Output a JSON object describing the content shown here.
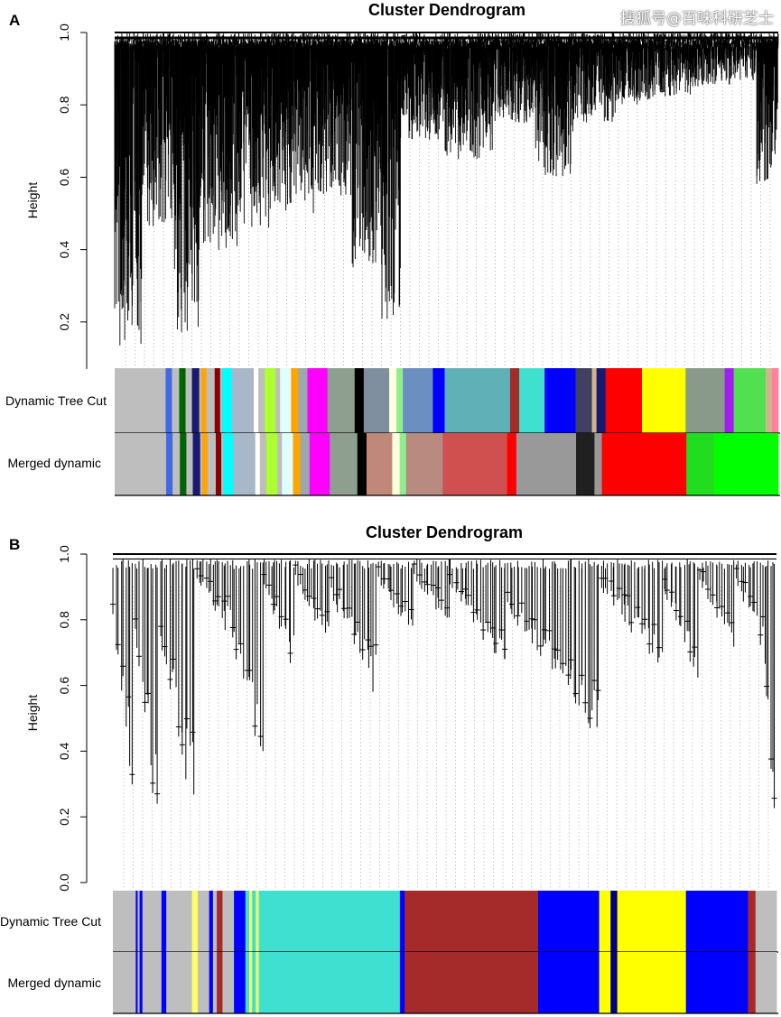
{
  "watermark": "搜狐号@百味科研芝士",
  "chart_data": [
    {
      "panel_label": "A",
      "type": "dendrogram",
      "title": "Cluster Dendrogram",
      "ylabel": "Height",
      "ylim": [
        0.1,
        1.0
      ],
      "yticks": [
        "0.2",
        "0.4",
        "0.6",
        "0.8",
        "1.0"
      ],
      "tick_values": [
        0.2,
        0.4,
        0.6,
        0.8,
        1.0
      ],
      "color_rows": [
        "Dynamic Tree Cut",
        "Merged dynamic"
      ],
      "branches": [
        {
          "weight": 10,
          "min_height": 0.13
        },
        {
          "weight": 12,
          "min_height": 0.45
        },
        {
          "weight": 10,
          "min_height": 0.16
        },
        {
          "weight": 14,
          "min_height": 0.38
        },
        {
          "weight": 12,
          "min_height": 0.46
        },
        {
          "weight": 16,
          "min_height": 0.5
        },
        {
          "weight": 14,
          "min_height": 0.55
        },
        {
          "weight": 10,
          "min_height": 0.35
        },
        {
          "weight": 8,
          "min_height": 0.2
        },
        {
          "weight": 16,
          "min_height": 0.7
        },
        {
          "weight": 18,
          "min_height": 0.65
        },
        {
          "weight": 16,
          "min_height": 0.75
        },
        {
          "weight": 14,
          "min_height": 0.6
        },
        {
          "weight": 16,
          "min_height": 0.75
        },
        {
          "weight": 14,
          "min_height": 0.8
        },
        {
          "weight": 14,
          "min_height": 0.82
        },
        {
          "weight": 14,
          "min_height": 0.85
        },
        {
          "weight": 10,
          "min_height": 0.86
        },
        {
          "weight": 8,
          "min_height": 0.58
        }
      ],
      "modules": {
        "dynamic_tree_cut": [
          [
            "#bebebe",
            56
          ],
          [
            "#4169e1",
            7
          ],
          [
            "#bebebe",
            8
          ],
          [
            "#006400",
            7
          ],
          [
            "#bebebe",
            7
          ],
          [
            "#191970",
            8
          ],
          [
            "#bebebe",
            2
          ],
          [
            "#ffa500",
            6
          ],
          [
            "#bebebe",
            9
          ],
          [
            "#8b0000",
            6
          ],
          [
            "#bebebe",
            2
          ],
          [
            "#00ffff",
            11
          ],
          [
            "#a9b8c8",
            24
          ],
          [
            "#ffffff",
            5
          ],
          [
            "#bebebe",
            7
          ],
          [
            "#adff2f",
            12
          ],
          [
            "#bebebe",
            5
          ],
          [
            "#e0ffff",
            12
          ],
          [
            "#ffa500",
            8
          ],
          [
            "#9aa8b0",
            10
          ],
          [
            "#ff00ff",
            22
          ],
          [
            "#8f9f8f",
            30
          ],
          [
            "#000000",
            10
          ],
          [
            "#7f8f9f",
            28
          ],
          [
            "#ffffe0",
            8
          ],
          [
            "#90ee90",
            7
          ],
          [
            "#6a8fc0",
            33
          ],
          [
            "#0000ff",
            13
          ],
          [
            "#60b0b8",
            72
          ],
          [
            "#a52a2a",
            10
          ],
          [
            "#40e0d0",
            28
          ],
          [
            "#0000ff",
            34
          ],
          [
            "#404060",
            18
          ],
          [
            "#d2b48c",
            5
          ],
          [
            "#191970",
            10
          ],
          [
            "#ff0000",
            40
          ],
          [
            "#ffff00",
            48
          ],
          [
            "#8a9a8a",
            43
          ],
          [
            "#a020f0",
            10
          ],
          [
            "#50e050",
            35
          ],
          [
            "#d2b48c",
            7
          ],
          [
            "#ff7f9f",
            7
          ]
        ],
        "merged_dynamic": [
          [
            "#bebebe",
            56
          ],
          [
            "#4169e1",
            7
          ],
          [
            "#bebebe",
            8
          ],
          [
            "#006400",
            7
          ],
          [
            "#bebebe",
            7
          ],
          [
            "#191970",
            8
          ],
          [
            "#bebebe",
            2
          ],
          [
            "#ffa500",
            6
          ],
          [
            "#bebebe",
            9
          ],
          [
            "#8b0000",
            6
          ],
          [
            "#bebebe",
            2
          ],
          [
            "#00ffff",
            11
          ],
          [
            "#a9b8c8",
            24
          ],
          [
            "#ffffff",
            5
          ],
          [
            "#bebebe",
            7
          ],
          [
            "#adff2f",
            12
          ],
          [
            "#bebebe",
            5
          ],
          [
            "#e0ffff",
            12
          ],
          [
            "#ffa500",
            8
          ],
          [
            "#9aa8b0",
            10
          ],
          [
            "#ff00ff",
            22
          ],
          [
            "#8f9f8f",
            30
          ],
          [
            "#000000",
            10
          ],
          [
            "#c08878",
            28
          ],
          [
            "#ffffe0",
            8
          ],
          [
            "#90ee90",
            7
          ],
          [
            "#b88a80",
            40
          ],
          [
            "#d05050",
            70
          ],
          [
            "#ff0000",
            10
          ],
          [
            "#999999",
            65
          ],
          [
            "#202020",
            20
          ],
          [
            "#999999",
            8
          ],
          [
            "#ff0000",
            92
          ],
          [
            "#20dd20",
            30
          ],
          [
            "#00ff00",
            70
          ]
        ]
      }
    },
    {
      "panel_label": "B",
      "type": "dendrogram",
      "title": "Cluster Dendrogram",
      "ylabel": "Height",
      "ylim": [
        0.0,
        1.0
      ],
      "yticks": [
        "0.0",
        "0.2",
        "0.4",
        "0.6",
        "0.8",
        "1.0"
      ],
      "tick_values": [
        0.0,
        0.2,
        0.4,
        0.6,
        0.8,
        1.0
      ],
      "color_rows": [
        "Dynamic Tree Cut",
        "Merged dynamic"
      ],
      "branches": [
        {
          "weight": 8,
          "min_height": 0.15
        },
        {
          "weight": 10,
          "min_height": 0.08
        },
        {
          "weight": 14,
          "min_height": 0.12
        },
        {
          "weight": 12,
          "min_height": 0.75
        },
        {
          "weight": 14,
          "min_height": 0.32
        },
        {
          "weight": 12,
          "min_height": 0.63
        },
        {
          "weight": 14,
          "min_height": 0.7
        },
        {
          "weight": 18,
          "min_height": 0.55
        },
        {
          "weight": 14,
          "min_height": 0.7
        },
        {
          "weight": 14,
          "min_height": 0.75
        },
        {
          "weight": 22,
          "min_height": 0.62
        },
        {
          "weight": 36,
          "min_height": 0.4
        },
        {
          "weight": 24,
          "min_height": 0.63
        },
        {
          "weight": 14,
          "min_height": 0.6
        },
        {
          "weight": 14,
          "min_height": 0.7
        },
        {
          "weight": 10,
          "min_height": 0.7
        },
        {
          "weight": 6,
          "min_height": 0.06
        }
      ],
      "modules": {
        "dynamic_tree_cut": [
          [
            "#bebebe",
            24
          ],
          [
            "#0000ff",
            2
          ],
          [
            "#bebebe",
            2
          ],
          [
            "#0000ff",
            3
          ],
          [
            "#bebebe",
            20
          ],
          [
            "#0000ff",
            5
          ],
          [
            "#bebebe",
            27
          ],
          [
            "#ffff66",
            6
          ],
          [
            "#bebebe",
            12
          ],
          [
            "#0000ff",
            4
          ],
          [
            "#bebebe",
            4
          ],
          [
            "#a52a2a",
            6
          ],
          [
            "#bebebe",
            12
          ],
          [
            "#0000ff",
            12
          ],
          [
            "#40e0d0",
            4
          ],
          [
            "#ffff66",
            3
          ],
          [
            "#40e0d0",
            4
          ],
          [
            "#ffff66",
            3
          ],
          [
            "#40e0d0",
            148
          ],
          [
            "#0000ff",
            5
          ],
          [
            "#a52a2a",
            140
          ],
          [
            "#0000ff",
            64
          ],
          [
            "#ffff00",
            12
          ],
          [
            "#000080",
            7
          ],
          [
            "#ffff00",
            72
          ],
          [
            "#0000ff",
            65
          ],
          [
            "#a52a2a",
            8
          ],
          [
            "#bebebe",
            22
          ]
        ],
        "merged_dynamic": [
          [
            "#bebebe",
            24
          ],
          [
            "#0000ff",
            2
          ],
          [
            "#bebebe",
            2
          ],
          [
            "#0000ff",
            3
          ],
          [
            "#bebebe",
            20
          ],
          [
            "#0000ff",
            5
          ],
          [
            "#bebebe",
            27
          ],
          [
            "#ffff66",
            6
          ],
          [
            "#bebebe",
            12
          ],
          [
            "#0000ff",
            4
          ],
          [
            "#bebebe",
            4
          ],
          [
            "#a52a2a",
            6
          ],
          [
            "#bebebe",
            12
          ],
          [
            "#0000ff",
            12
          ],
          [
            "#40e0d0",
            4
          ],
          [
            "#ffff66",
            3
          ],
          [
            "#40e0d0",
            4
          ],
          [
            "#ffff66",
            3
          ],
          [
            "#40e0d0",
            148
          ],
          [
            "#0000ff",
            5
          ],
          [
            "#a52a2a",
            140
          ],
          [
            "#0000ff",
            64
          ],
          [
            "#ffff00",
            12
          ],
          [
            "#000080",
            7
          ],
          [
            "#ffff00",
            72
          ],
          [
            "#0000ff",
            65
          ],
          [
            "#a52a2a",
            8
          ],
          [
            "#bebebe",
            22
          ]
        ]
      }
    }
  ]
}
